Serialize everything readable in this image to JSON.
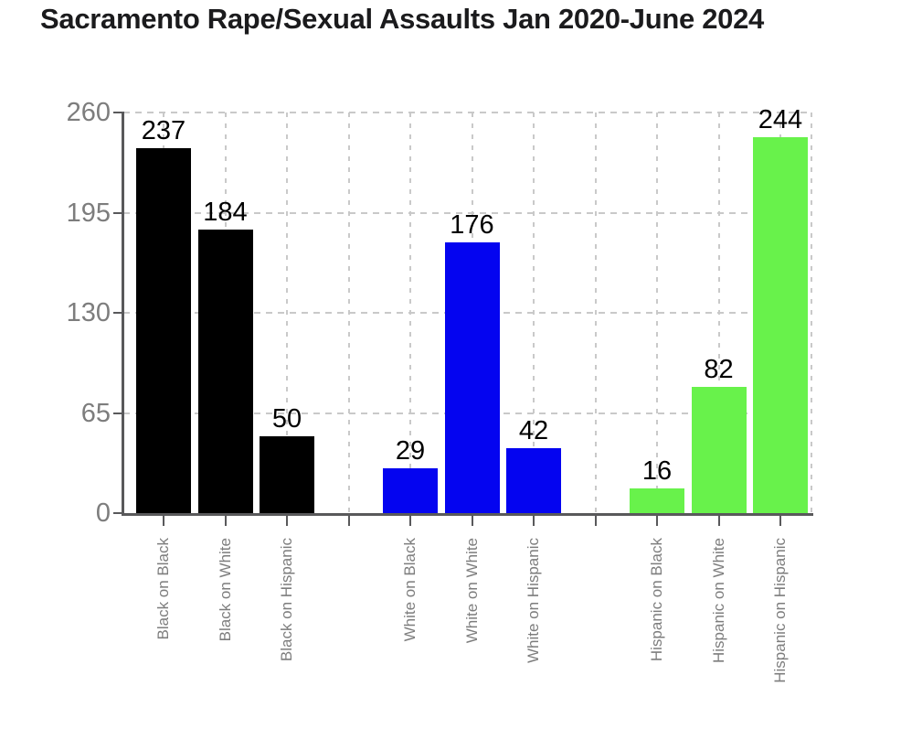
{
  "header": {
    "title": "Sacramento Rape/Sexual Assaults Jan 2020-June 2024"
  },
  "chart_data": {
    "type": "bar",
    "title": "Sacramento Rape/Sexual Assaults Jan 2020-June 2024",
    "categories": [
      "Black on Black",
      "Black on White",
      "Black on Hispanic",
      "White on Black",
      "White on White",
      "White on Hispanic",
      "Hispanic on Black",
      "Hispanic on White",
      "Hispanic on Hispanic"
    ],
    "values": [
      237,
      184,
      50,
      29,
      176,
      42,
      16,
      82,
      244
    ],
    "bar_colors": [
      "#000000",
      "#000000",
      "#000000",
      "#0404f0",
      "#0404f0",
      "#0404f0",
      "#68f24b",
      "#68f24b",
      "#68f24b"
    ],
    "group_size": 3,
    "gap_slots_between_groups": 1,
    "xlabel": "",
    "ylabel": "",
    "yticks": [
      0,
      65,
      130,
      195,
      260
    ],
    "ylim": [
      0,
      260
    ],
    "grid": "dashed-both-axes",
    "legend": "none",
    "show_value_labels": true,
    "styles": {
      "axis_color": "#59595b",
      "grid_color": "#c9c9c9",
      "tick_label_color": "#7d7d7d",
      "value_label_color": "#000000",
      "title_color": "#1b1b1d",
      "background": "#ffffff"
    }
  }
}
